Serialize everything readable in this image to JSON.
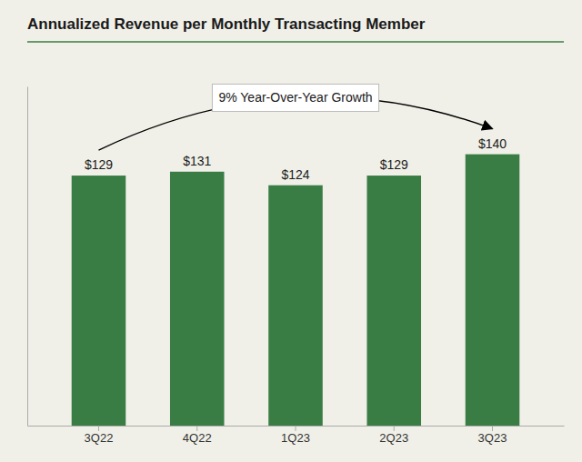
{
  "chart_data": {
    "type": "bar",
    "title": "Annualized Revenue per Monthly Transacting Member",
    "categories": [
      "3Q22",
      "4Q22",
      "1Q23",
      "2Q23",
      "3Q23"
    ],
    "values": [
      129,
      131,
      124,
      129,
      140
    ],
    "value_labels": [
      "$129",
      "$131",
      "$124",
      "$129",
      "$140"
    ],
    "data_labels": true,
    "color": "#3a7d44",
    "ylim": [
      0,
      175
    ],
    "tick_labels": "x",
    "grid": false,
    "annotation": "9% Year-Over-Year Growth"
  }
}
